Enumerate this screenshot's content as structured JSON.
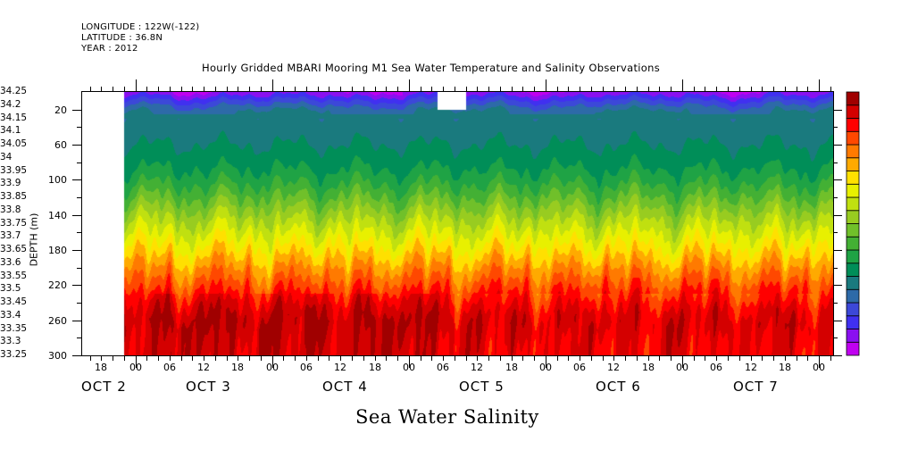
{
  "header": {
    "longitude": "LONGITUDE : 122W(-122)",
    "latitude": "LATITUDE : 36.8N",
    "year": "YEAR : 2012"
  },
  "chart_data": {
    "type": "heatmap",
    "subtype": "filled-contour",
    "title": "Hourly Gridded MBARI Mooring M1 Sea Water Temperature and Salinity Observations",
    "variable_label": "Sea Water Salinity",
    "ylabel": "DEPTH (m)",
    "xlabel": "",
    "y_axis": {
      "range": [
        0,
        300
      ],
      "inverted": true,
      "ticks": [
        20,
        60,
        100,
        140,
        180,
        220,
        260,
        300
      ],
      "minor_ticks": [
        40,
        80,
        120,
        160,
        200,
        240,
        280
      ]
    },
    "x_axis": {
      "units": "hours since 2012-10-02 00:00",
      "range": [
        14.5,
        146.5
      ],
      "data_start_hour": 22,
      "hour_ticks": [
        {
          "hour": 18,
          "label": "18"
        },
        {
          "hour": 24,
          "label": "00"
        },
        {
          "hour": 30,
          "label": "06"
        },
        {
          "hour": 36,
          "label": "12"
        },
        {
          "hour": 42,
          "label": "18"
        },
        {
          "hour": 48,
          "label": "00"
        },
        {
          "hour": 54,
          "label": "06"
        },
        {
          "hour": 60,
          "label": "12"
        },
        {
          "hour": 66,
          "label": "18"
        },
        {
          "hour": 72,
          "label": "00"
        },
        {
          "hour": 78,
          "label": "06"
        },
        {
          "hour": 84,
          "label": "12"
        },
        {
          "hour": 90,
          "label": "18"
        },
        {
          "hour": 96,
          "label": "00"
        },
        {
          "hour": 102,
          "label": "06"
        },
        {
          "hour": 108,
          "label": "12"
        },
        {
          "hour": 114,
          "label": "18"
        },
        {
          "hour": 120,
          "label": "00"
        },
        {
          "hour": 126,
          "label": "06"
        },
        {
          "hour": 132,
          "label": "12"
        },
        {
          "hour": 138,
          "label": "18"
        },
        {
          "hour": 144,
          "label": "00"
        }
      ],
      "day_labels": [
        {
          "hour": 14.5,
          "label": "OCT  2"
        },
        {
          "hour": 36,
          "label": "OCT  3"
        },
        {
          "hour": 60,
          "label": "OCT  4"
        },
        {
          "hour": 84,
          "label": "OCT  5"
        },
        {
          "hour": 108,
          "label": "OCT  6"
        },
        {
          "hour": 132,
          "label": "OCT  7"
        }
      ]
    },
    "missing_data": [
      {
        "from_hour": 14.5,
        "to_hour": 22,
        "depth_from": 0,
        "depth_to": 300
      },
      {
        "from_hour": 77,
        "to_hour": 82,
        "depth_from": 0,
        "depth_to": 20
      }
    ],
    "colorbar": {
      "levels": [
        33.25,
        33.3,
        33.35,
        33.4,
        33.45,
        33.5,
        33.55,
        33.6,
        33.65,
        33.7,
        33.75,
        33.8,
        33.85,
        33.9,
        33.95,
        34.0,
        34.05,
        34.1,
        34.15,
        34.2,
        34.25
      ],
      "labels": [
        "33.25",
        "33.3",
        "33.35",
        "33.4",
        "33.45",
        "33.5",
        "33.55",
        "33.6",
        "33.65",
        "33.7",
        "33.75",
        "33.8",
        "33.85",
        "33.9",
        "33.95",
        "34",
        "34.05",
        "34.1",
        "34.15",
        "34.2",
        "34.25"
      ],
      "colors": [
        "#c000f0",
        "#8a10f0",
        "#4030f0",
        "#3c48d8",
        "#2d6aa8",
        "#1a7a7e",
        "#008e58",
        "#1fa345",
        "#43b034",
        "#70c02a",
        "#98cc20",
        "#c0e010",
        "#e8f000",
        "#ffe000",
        "#ffaa00",
        "#ff7a00",
        "#ff4800",
        "#ff0000",
        "#d40000",
        "#a00000"
      ]
    },
    "profile_typical": {
      "depths": [
        0,
        10,
        20,
        40,
        60,
        80,
        100,
        120,
        140,
        160,
        180,
        200,
        220,
        240,
        260,
        280,
        300
      ],
      "salinity": [
        33.32,
        33.42,
        33.5,
        33.52,
        33.55,
        33.58,
        33.63,
        33.7,
        33.78,
        33.85,
        33.92,
        34.0,
        34.07,
        34.14,
        34.19,
        34.17,
        34.16
      ]
    }
  }
}
